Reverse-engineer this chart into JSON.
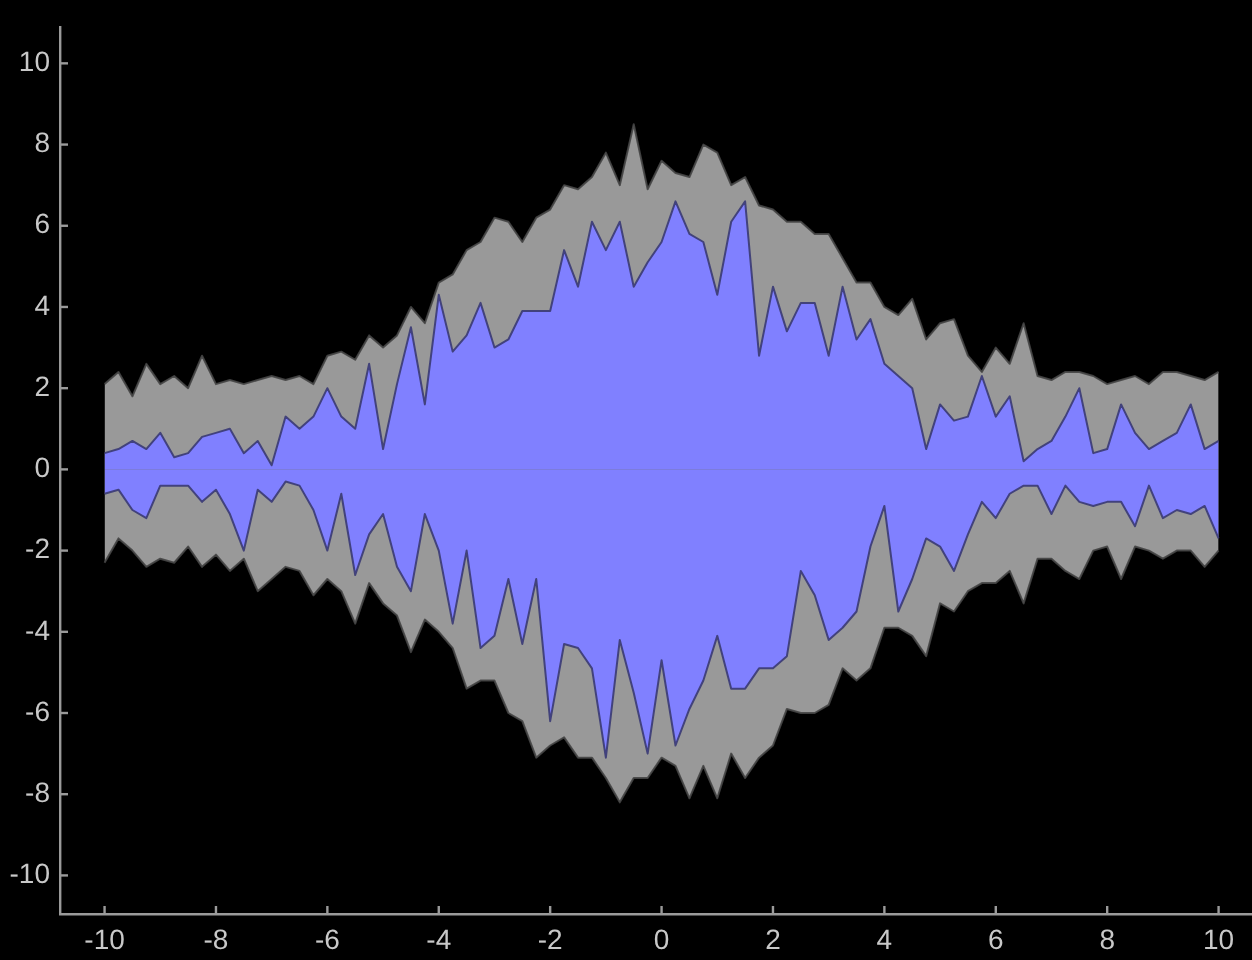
{
  "chart_data": {
    "type": "area",
    "x": [
      -10,
      -9.75,
      -9.5,
      -9.25,
      -9,
      -8.75,
      -8.5,
      -8.25,
      -8,
      -7.75,
      -7.5,
      -7.25,
      -7,
      -6.75,
      -6.5,
      -6.25,
      -6,
      -5.75,
      -5.5,
      -5.25,
      -5,
      -4.75,
      -4.5,
      -4.25,
      -4,
      -3.75,
      -3.5,
      -3.25,
      -3,
      -2.75,
      -2.5,
      -2.25,
      -2,
      -1.75,
      -1.5,
      -1.25,
      -1,
      -0.75,
      -0.5,
      -0.25,
      0,
      0.25,
      0.5,
      0.75,
      1,
      1.25,
      1.5,
      1.75,
      2,
      2.25,
      2.5,
      2.75,
      3,
      3.25,
      3.5,
      3.75,
      4,
      4.25,
      4.5,
      4.75,
      5,
      5.25,
      5.5,
      5.75,
      6,
      6.25,
      6.5,
      6.75,
      7,
      7.25,
      7.5,
      7.75,
      8,
      8.25,
      8.5,
      8.75,
      9,
      9.25,
      9.5,
      9.75,
      10
    ],
    "series": [
      {
        "color": "#999999",
        "values": [
          2.1,
          2.4,
          1.8,
          2.6,
          2.1,
          2.3,
          2.0,
          2.8,
          2.1,
          2.2,
          2.1,
          2.2,
          2.3,
          2.2,
          2.3,
          2.1,
          2.8,
          2.9,
          2.7,
          3.3,
          3.0,
          3.3,
          4.0,
          3.6,
          4.6,
          4.8,
          5.4,
          5.6,
          6.2,
          6.1,
          5.6,
          6.2,
          6.4,
          7.0,
          6.9,
          7.2,
          7.8,
          7.0,
          8.5,
          6.9,
          7.6,
          7.3,
          7.2,
          8.0,
          7.8,
          7.0,
          7.2,
          6.5,
          6.4,
          6.1,
          6.1,
          5.8,
          5.8,
          5.2,
          4.6,
          4.6,
          4.0,
          3.8,
          4.2,
          3.2,
          3.6,
          3.7,
          2.8,
          2.4,
          3.0,
          2.6,
          3.6,
          2.3,
          2.2,
          2.4,
          2.4,
          2.3,
          2.1,
          2.2,
          2.3,
          2.1,
          2.4,
          2.4,
          2.3,
          2.2,
          2.4
        ]
      },
      {
        "color": "#999999",
        "values": [
          -2.3,
          -1.7,
          -2.0,
          -2.4,
          -2.2,
          -2.3,
          -1.9,
          -2.4,
          -2.1,
          -2.5,
          -2.2,
          -3.0,
          -2.7,
          -2.4,
          -2.5,
          -3.1,
          -2.7,
          -3.0,
          -3.8,
          -2.8,
          -3.3,
          -3.6,
          -4.5,
          -3.7,
          -4.0,
          -4.4,
          -5.4,
          -5.2,
          -5.2,
          -6.0,
          -6.2,
          -7.1,
          -6.8,
          -6.6,
          -7.1,
          -7.1,
          -7.6,
          -8.2,
          -7.6,
          -7.6,
          -7.1,
          -7.3,
          -8.1,
          -7.3,
          -8.1,
          -7.0,
          -7.6,
          -7.1,
          -6.8,
          -5.9,
          -6.0,
          -6.0,
          -5.8,
          -4.9,
          -5.2,
          -4.9,
          -3.9,
          -3.9,
          -4.1,
          -4.6,
          -3.3,
          -3.5,
          -3.0,
          -2.8,
          -2.8,
          -2.5,
          -3.3,
          -2.2,
          -2.2,
          -2.5,
          -2.7,
          -2.0,
          -1.9,
          -2.7,
          -1.9,
          -2.0,
          -2.2,
          -2.0,
          -2.0,
          -2.4,
          -2.0
        ]
      },
      {
        "color": "#8080ff",
        "values": [
          0.4,
          0.5,
          0.7,
          0.5,
          0.9,
          0.3,
          0.4,
          0.8,
          0.9,
          1.0,
          0.4,
          0.7,
          0.1,
          1.3,
          1.0,
          1.3,
          2.0,
          1.3,
          1.0,
          2.6,
          0.5,
          2.1,
          3.5,
          1.6,
          4.3,
          2.9,
          3.3,
          4.1,
          3.0,
          3.2,
          3.9,
          3.9,
          3.9,
          5.4,
          4.5,
          6.1,
          5.4,
          6.1,
          4.5,
          5.1,
          5.6,
          6.6,
          5.8,
          5.6,
          4.3,
          6.1,
          6.6,
          2.8,
          4.5,
          3.4,
          4.1,
          4.1,
          2.8,
          4.5,
          3.2,
          3.7,
          2.6,
          2.3,
          2.0,
          0.5,
          1.6,
          1.2,
          1.3,
          2.3,
          1.3,
          1.8,
          0.2,
          0.5,
          0.7,
          1.3,
          2.0,
          0.4,
          0.5,
          1.6,
          0.9,
          0.5,
          0.7,
          0.9,
          1.6,
          0.5,
          0.7
        ]
      },
      {
        "color": "#8080ff",
        "values": [
          -0.6,
          -0.5,
          -1.0,
          -1.2,
          -0.4,
          -0.4,
          -0.4,
          -0.8,
          -0.5,
          -1.1,
          -2.0,
          -0.5,
          -0.8,
          -0.3,
          -0.4,
          -1.0,
          -2.0,
          -0.6,
          -2.6,
          -1.6,
          -1.1,
          -2.4,
          -3.0,
          -1.1,
          -2.0,
          -3.8,
          -2.0,
          -4.4,
          -4.1,
          -2.7,
          -4.3,
          -2.7,
          -6.2,
          -4.3,
          -4.4,
          -4.9,
          -7.1,
          -4.2,
          -5.5,
          -7.0,
          -4.7,
          -6.8,
          -5.9,
          -5.2,
          -4.1,
          -5.4,
          -5.4,
          -4.9,
          -4.9,
          -4.6,
          -2.5,
          -3.1,
          -4.2,
          -3.9,
          -3.5,
          -1.9,
          -0.9,
          -3.5,
          -2.7,
          -1.7,
          -1.9,
          -2.5,
          -1.6,
          -0.8,
          -1.2,
          -0.6,
          -0.4,
          -0.4,
          -1.1,
          -0.4,
          -0.8,
          -0.9,
          -0.8,
          -0.8,
          -1.4,
          -0.4,
          -1.2,
          -1.0,
          -1.1,
          -0.9,
          -1.7
        ]
      }
    ],
    "xlim": [
      -10.8,
      10.6
    ],
    "ylim": [
      -10.95,
      10.9
    ],
    "xticks": [
      -10,
      -8,
      -6,
      -4,
      -2,
      0,
      2,
      4,
      6,
      8,
      10
    ],
    "yticks": [
      -10,
      -8,
      -6,
      -4,
      -2,
      0,
      2,
      4,
      6,
      8,
      10
    ],
    "legend": false
  }
}
